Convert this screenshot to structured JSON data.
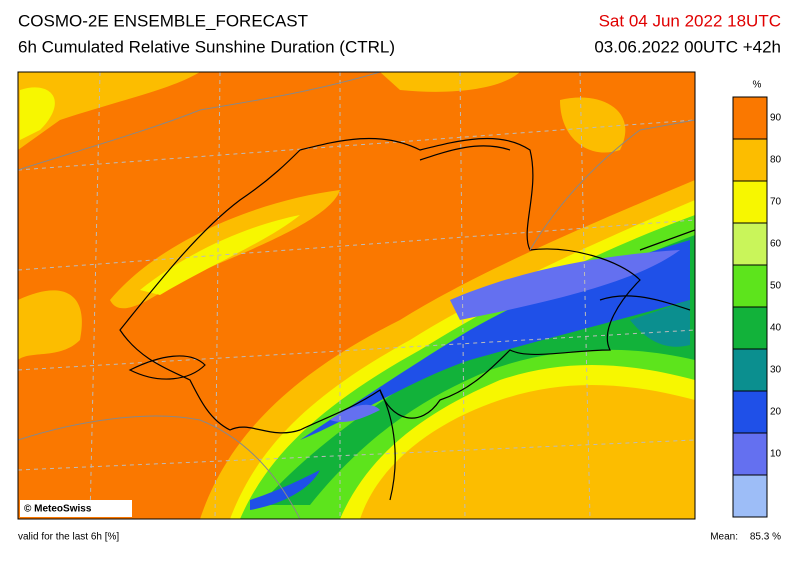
{
  "header": {
    "title": "COSMO-2E ENSEMBLE_FORECAST",
    "subtitle": "6h Cumulated Relative Sunshine Duration (CTRL)",
    "valid_time": "Sat 04 Jun 2022 18UTC",
    "run": "03.06.2022 00UTC +42h"
  },
  "colorbar": {
    "unit": "%",
    "lim": [
      0,
      100
    ],
    "ticks": [
      10,
      20,
      30,
      40,
      50,
      60,
      70,
      80,
      90
    ],
    "colors": [
      "#9dbdf7",
      "#6470f0",
      "#1f50e8",
      "#0b8f8f",
      "#12b23a",
      "#5de41c",
      "#c9f55a",
      "#f7f700",
      "#fcbd00",
      "#fa7800"
    ]
  },
  "footer": {
    "copyright": "© MeteoSwiss",
    "validity": "valid for the last 6h [%]",
    "mean_label": "Mean:",
    "mean": "85.3 %"
  }
}
